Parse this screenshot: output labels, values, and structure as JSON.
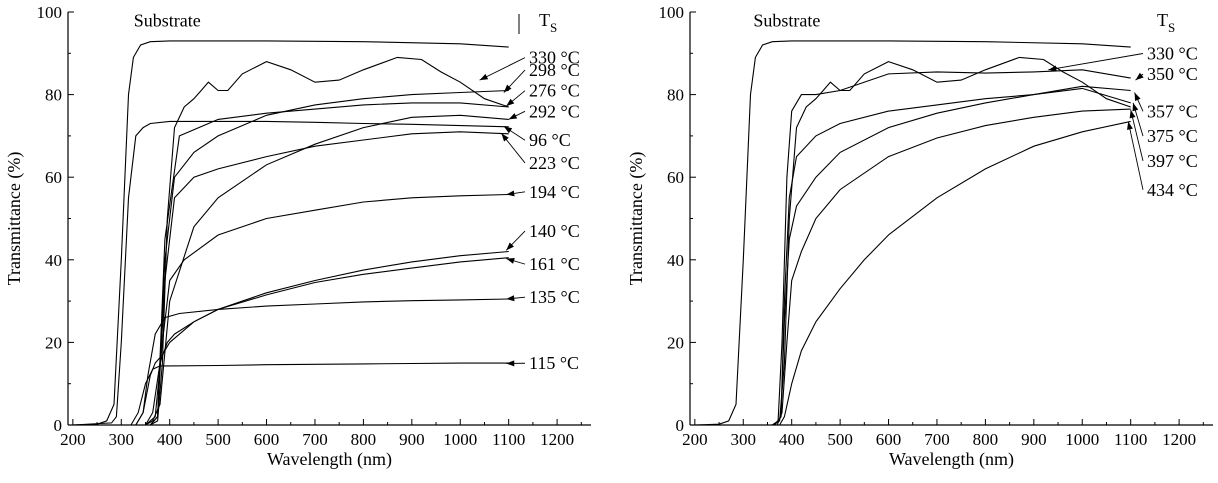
{
  "chart_data": [
    {
      "type": "line",
      "xlabel": "Wavelength (nm)",
      "ylabel": "Transmittance (%)",
      "xlim": [
        190,
        1270
      ],
      "ylim": [
        0,
        100
      ],
      "xticks": [
        "200",
        "300",
        "400",
        "500",
        "600",
        "700",
        "800",
        "900",
        "1000",
        "1100",
        "1200"
      ],
      "yticks": [
        "0",
        "20",
        "40",
        "60",
        "80",
        "100"
      ],
      "legend_header": {
        "main": "T",
        "sub": "S"
      },
      "annotations": [
        {
          "text": "Substrate",
          "x": 395,
          "y": 96.5
        }
      ],
      "series": [
        {
          "name": "Substrate",
          "x": [
            200,
            250,
            270,
            285,
            300,
            315,
            325,
            340,
            360,
            400,
            600,
            800,
            1000,
            1100
          ],
          "y": [
            0,
            0.2,
            1,
            5,
            40,
            80,
            89,
            92,
            92.8,
            93,
            93,
            92.8,
            92.3,
            91.5
          ]
        },
        {
          "name": "330 °C",
          "arrow": [
            1040,
            83.5
          ],
          "label_y": 87.5,
          "x": [
            200,
            360,
            375,
            385,
            395,
            410,
            430,
            450,
            465,
            480,
            500,
            520,
            550,
            600,
            650,
            700,
            750,
            800,
            870,
            920,
            960,
            1000,
            1050,
            1100
          ],
          "y": [
            0,
            0,
            1,
            15,
            50,
            72,
            77,
            79,
            81,
            83,
            81,
            81,
            85,
            88,
            86,
            83,
            83.5,
            86,
            89,
            88.5,
            85.5,
            83,
            79,
            77
          ]
        },
        {
          "name": "298 °C",
          "arrow": [
            1090,
            80.5
          ],
          "label_y": 84.5,
          "x": [
            200,
            360,
            375,
            390,
            410,
            450,
            500,
            600,
            700,
            800,
            900,
            1000,
            1100
          ],
          "y": [
            0,
            0,
            2,
            40,
            60,
            66,
            70,
            75,
            77.5,
            79,
            80,
            80.5,
            81
          ]
        },
        {
          "name": "276 °C",
          "arrow": [
            1095,
            77.2
          ],
          "label_y": 79.5,
          "x": [
            200,
            360,
            375,
            390,
            420,
            500,
            600,
            700,
            800,
            900,
            1000,
            1100
          ],
          "y": [
            0,
            0,
            2,
            45,
            70,
            74,
            75.5,
            76.5,
            77.5,
            78,
            78,
            77
          ]
        },
        {
          "name": "292 °C",
          "arrow": [
            1100,
            74
          ],
          "label_y": 74.5,
          "x": [
            200,
            350,
            365,
            380,
            400,
            450,
            500,
            600,
            700,
            800,
            900,
            1000,
            1100
          ],
          "y": [
            0,
            0,
            1,
            5,
            30,
            48,
            55,
            63,
            68,
            72,
            74.5,
            75,
            74
          ]
        },
        {
          "name": "96 °C",
          "arrow": [
            1090,
            72.3
          ],
          "label_y": 67.5,
          "x": [
            200,
            280,
            290,
            300,
            315,
            330,
            345,
            360,
            400,
            500,
            600,
            700,
            800,
            900,
            1000,
            1100
          ],
          "y": [
            0,
            0.5,
            2,
            20,
            55,
            70,
            72,
            73,
            73.5,
            73.5,
            73.5,
            73.3,
            73,
            72.8,
            72.5,
            72.2
          ]
        },
        {
          "name": "223 °C",
          "arrow": [
            1085,
            70.6
          ],
          "label_y": 62,
          "x": [
            200,
            360,
            375,
            390,
            410,
            450,
            500,
            600,
            700,
            800,
            900,
            1000,
            1100
          ],
          "y": [
            0,
            0,
            2,
            35,
            55,
            60,
            62,
            65,
            67.5,
            69,
            70.5,
            71,
            70.5
          ]
        },
        {
          "name": "194 °C",
          "arrow": [
            1095,
            55.8
          ],
          "label_y": 55,
          "x": [
            200,
            350,
            370,
            385,
            400,
            430,
            500,
            600,
            700,
            800,
            900,
            1000,
            1100
          ],
          "y": [
            0,
            0,
            2,
            20,
            35,
            40,
            46,
            50,
            52,
            54,
            55,
            55.5,
            55.8
          ]
        },
        {
          "name": "140 °C",
          "arrow": [
            1095,
            42.3
          ],
          "label_y": 45.5,
          "x": [
            200,
            330,
            345,
            360,
            370,
            385,
            400,
            450,
            500,
            600,
            700,
            800,
            900,
            1000,
            1100
          ],
          "y": [
            0,
            0,
            3,
            12,
            15,
            17,
            20,
            25,
            28,
            32,
            35,
            37.5,
            39.5,
            41,
            42
          ]
        },
        {
          "name": "161 °C",
          "arrow": [
            1095,
            40.3
          ],
          "label_y": 37.5,
          "x": [
            200,
            350,
            365,
            380,
            395,
            410,
            450,
            500,
            600,
            700,
            800,
            900,
            1000,
            1100
          ],
          "y": [
            0,
            0,
            3,
            15,
            20,
            22,
            25,
            28,
            31.5,
            34.5,
            36.5,
            38,
            39.5,
            40.5
          ]
        },
        {
          "name": "135 °C",
          "arrow": [
            1095,
            30.5
          ],
          "label_y": 29.5,
          "x": [
            200,
            330,
            345,
            355,
            370,
            390,
            420,
            500,
            600,
            700,
            800,
            900,
            1000,
            1100
          ],
          "y": [
            0,
            0,
            3,
            12,
            22,
            26,
            27,
            28,
            28.8,
            29.3,
            29.8,
            30.1,
            30.3,
            30.5
          ]
        },
        {
          "name": "115 °C",
          "arrow": [
            1095,
            14.9
          ],
          "label_y": 13.5,
          "x": [
            200,
            320,
            335,
            350,
            365,
            380,
            400,
            500,
            600,
            700,
            800,
            900,
            1000,
            1100
          ],
          "y": [
            0,
            0,
            3,
            10,
            13.5,
            14.3,
            14.3,
            14.4,
            14.6,
            14.7,
            14.8,
            14.9,
            15,
            15
          ]
        }
      ]
    },
    {
      "type": "line",
      "xlabel": "Wavelength (nm)",
      "ylabel": "Transmittance (%)",
      "xlim": [
        190,
        1270
      ],
      "ylim": [
        0,
        100
      ],
      "xticks": [
        "200",
        "300",
        "400",
        "500",
        "600",
        "700",
        "800",
        "900",
        "1000",
        "1100",
        "1200"
      ],
      "yticks": [
        "0",
        "20",
        "40",
        "60",
        "80",
        "100"
      ],
      "legend_header": {
        "main": "T",
        "sub": "S"
      },
      "annotations": [
        {
          "text": "Substrate",
          "x": 390,
          "y": 96.5
        }
      ],
      "series": [
        {
          "name": "Substrate",
          "x": [
            200,
            250,
            270,
            285,
            300,
            315,
            325,
            340,
            360,
            400,
            600,
            800,
            1000,
            1100
          ],
          "y": [
            0,
            0.2,
            1,
            5,
            40,
            80,
            89,
            92,
            92.8,
            93,
            93,
            92.8,
            92.3,
            91.5
          ]
        },
        {
          "name": "330 °C",
          "arrow": [
            930,
            86
          ],
          "label_y": 88.5,
          "x": [
            200,
            360,
            375,
            385,
            395,
            410,
            430,
            450,
            465,
            480,
            500,
            520,
            550,
            600,
            650,
            700,
            750,
            800,
            870,
            920,
            960,
            1000,
            1050,
            1100
          ],
          "y": [
            0,
            0,
            1,
            15,
            50,
            72,
            77,
            79,
            81,
            83,
            81,
            81,
            85,
            88,
            86,
            83,
            83.5,
            86,
            89,
            88.5,
            85.5,
            83,
            79,
            77
          ]
        },
        {
          "name": "350 °C",
          "arrow": [
            1110,
            83.5
          ],
          "label_y": 83.5,
          "x": [
            200,
            360,
            372,
            380,
            390,
            400,
            420,
            450,
            500,
            600,
            700,
            800,
            900,
            1000,
            1100
          ],
          "y": [
            0,
            0,
            1,
            20,
            60,
            76,
            80,
            80,
            81,
            85,
            85.5,
            85.2,
            85.5,
            86,
            84
          ]
        },
        {
          "name": "357 °C",
          "arrow": [
            1108,
            80.5
          ],
          "label_y": 74.5,
          "x": [
            200,
            365,
            378,
            385,
            395,
            410,
            450,
            500,
            600,
            700,
            800,
            900,
            1000,
            1100
          ],
          "y": [
            0,
            0,
            2,
            30,
            55,
            65,
            70,
            73,
            76,
            77.5,
            79,
            80,
            82,
            81
          ]
        },
        {
          "name": "375 °C",
          "arrow": [
            1105,
            78
          ],
          "label_y": 68.5,
          "x": [
            200,
            365,
            378,
            385,
            395,
            410,
            450,
            500,
            600,
            700,
            800,
            900,
            1000,
            1100
          ],
          "y": [
            0,
            0,
            2,
            25,
            45,
            53,
            60,
            66,
            72,
            75.5,
            78,
            80,
            81.5,
            78
          ]
        },
        {
          "name": "397 °C",
          "arrow": [
            1100,
            76.3
          ],
          "label_y": 62.5,
          "x": [
            200,
            370,
            380,
            390,
            400,
            420,
            450,
            500,
            600,
            700,
            800,
            900,
            1000,
            1100
          ],
          "y": [
            0,
            0,
            3,
            20,
            35,
            42,
            50,
            57,
            65,
            69.5,
            72.5,
            74.5,
            76,
            76.5
          ]
        },
        {
          "name": "434 °C",
          "arrow": [
            1095,
            73.5
          ],
          "label_y": 55.5,
          "x": [
            200,
            375,
            385,
            400,
            420,
            450,
            500,
            550,
            600,
            700,
            800,
            900,
            1000,
            1100
          ],
          "y": [
            0,
            0,
            2,
            10,
            18,
            25,
            33,
            40,
            46,
            55,
            62,
            67.5,
            71,
            73.5
          ]
        }
      ]
    }
  ]
}
